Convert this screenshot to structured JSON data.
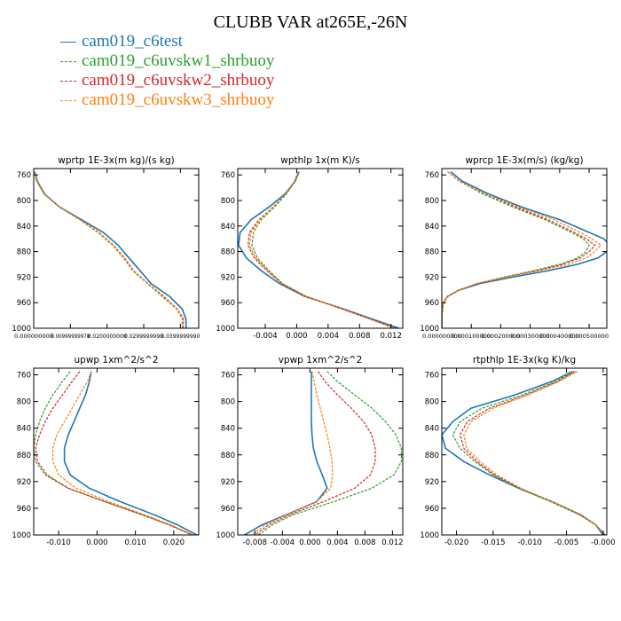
{
  "title": "CLUBB VAR at265E,-26N",
  "legend": [
    {
      "name": "cam019_c6test",
      "color": "#1f77b4",
      "dash": false
    },
    {
      "name": "cam019_c6uvskw1_shrbuoy",
      "color": "#2ca02c",
      "dash": true
    },
    {
      "name": "cam019_c6uvskw2_shrbuoy",
      "color": "#d62728",
      "dash": true
    },
    {
      "name": "cam019_c6uvskw3_shrbuoy",
      "color": "#ff7f0e",
      "dash": true
    }
  ],
  "chart_data": [
    {
      "type": "line",
      "title": "wprtp  1E-3x(m kg)/(s kg)",
      "xlim": [
        0.0,
        0.045
      ],
      "ylim": [
        1000,
        750
      ],
      "xticks": [
        0.0,
        0.01,
        0.02,
        0.03,
        0.04
      ],
      "xticklabels": [
        "0.000000000",
        "0.00999999978",
        "0.0200000000",
        "0.0299999990",
        "0.0399999990"
      ],
      "yticks": [
        760,
        800,
        840,
        880,
        920,
        960,
        1000
      ],
      "y": [
        755,
        770,
        790,
        810,
        830,
        850,
        870,
        890,
        910,
        930,
        950,
        970,
        985,
        1000
      ],
      "series": [
        {
          "name": "cam019_c6test",
          "values": [
            0.0003,
            0.001,
            0.003,
            0.007,
            0.013,
            0.019,
            0.023,
            0.026,
            0.029,
            0.032,
            0.037,
            0.0405,
            0.0415,
            0.0416
          ]
        },
        {
          "name": "cam019_c6uvskw1_shrbuoy",
          "values": [
            0.0002,
            0.0008,
            0.0028,
            0.007,
            0.0125,
            0.0175,
            0.0215,
            0.0245,
            0.027,
            0.031,
            0.035,
            0.039,
            0.0405,
            0.0405
          ]
        },
        {
          "name": "cam019_c6uvskw2_shrbuoy",
          "values": [
            0.0002,
            0.0009,
            0.0029,
            0.007,
            0.0127,
            0.0178,
            0.0218,
            0.0248,
            0.0273,
            0.0312,
            0.0355,
            0.0392,
            0.0408,
            0.0408
          ]
        },
        {
          "name": "cam019_c6uvskw3_shrbuoy",
          "values": [
            0.0002,
            0.0009,
            0.0029,
            0.007,
            0.0126,
            0.0177,
            0.0217,
            0.0247,
            0.0272,
            0.0311,
            0.0353,
            0.0391,
            0.0406,
            0.0406
          ]
        }
      ]
    },
    {
      "type": "line",
      "title": "wpthlp  1x(m K)/s",
      "xlim": [
        -0.0075,
        0.0135
      ],
      "ylim": [
        1000,
        750
      ],
      "xticks": [
        -0.004,
        0.0,
        0.004,
        0.008,
        0.012
      ],
      "xticklabels": [
        "-0.004",
        "0.000",
        "0.004",
        "0.008",
        "0.012"
      ],
      "yticks": [
        760,
        800,
        840,
        880,
        920,
        960,
        1000
      ],
      "y": [
        755,
        770,
        790,
        810,
        830,
        850,
        870,
        890,
        910,
        930,
        950,
        970,
        985,
        1000
      ],
      "series": [
        {
          "name": "cam019_c6test",
          "values": [
            0.0003,
            -0.0002,
            -0.0015,
            -0.0035,
            -0.0058,
            -0.0072,
            -0.0074,
            -0.0064,
            -0.0045,
            -0.0022,
            0.001,
            0.006,
            0.0095,
            0.013
          ]
        },
        {
          "name": "cam019_c6uvskw1_shrbuoy",
          "values": [
            0.0002,
            -0.0002,
            -0.0013,
            -0.0028,
            -0.0045,
            -0.0055,
            -0.0057,
            -0.005,
            -0.0035,
            -0.0018,
            0.0012,
            0.0058,
            0.0092,
            0.0125
          ]
        },
        {
          "name": "cam019_c6uvskw2_shrbuoy",
          "values": [
            0.0002,
            -0.0003,
            -0.0014,
            -0.003,
            -0.0048,
            -0.006,
            -0.0062,
            -0.0054,
            -0.0038,
            -0.0019,
            0.0012,
            0.0058,
            0.0092,
            0.0125
          ]
        },
        {
          "name": "cam019_c6uvskw3_shrbuoy",
          "values": [
            0.0002,
            -0.0003,
            -0.0014,
            -0.003,
            -0.0047,
            -0.0058,
            -0.006,
            -0.0052,
            -0.0037,
            -0.0019,
            0.0012,
            0.0058,
            0.0092,
            0.0125
          ]
        }
      ]
    },
    {
      "type": "line",
      "title": "wprcp  1E-3x(m/s) (kg/kg)",
      "xlim": [
        0.0,
        0.00056
      ],
      "ylim": [
        1000,
        750
      ],
      "xticks": [
        0.0,
        0.0001,
        0.0002,
        0.0003,
        0.0004,
        0.0005
      ],
      "xticklabels": [
        "0.000000000",
        "0.000100000",
        "0.000200000",
        "0.000300000",
        "0.000400000",
        "0.000500000"
      ],
      "yticks": [
        760,
        800,
        840,
        880,
        920,
        960,
        1000
      ],
      "y": [
        755,
        770,
        790,
        810,
        830,
        850,
        860,
        870,
        880,
        890,
        900,
        910,
        920,
        930,
        940,
        950,
        960,
        980,
        1000
      ],
      "series": [
        {
          "name": "cam019_c6test",
          "values": [
            3e-05,
            7e-05,
            0.00016,
            0.00027,
            0.0004,
            0.0005,
            0.00055,
            0.00057,
            0.00056,
            0.00053,
            0.00046,
            0.00036,
            0.00024,
            0.00013,
            6e-05,
            2e-05,
            5e-06,
            0.0,
            0.0
          ]
        },
        {
          "name": "cam019_c6uvskw1_shrbuoy",
          "values": [
            2e-05,
            6e-05,
            0.00014,
            0.00024,
            0.00035,
            0.00044,
            0.00048,
            0.0005,
            0.00049,
            0.00046,
            0.0004,
            0.00031,
            0.00021,
            0.00012,
            6e-05,
            2e-05,
            5e-06,
            0.0,
            0.0
          ]
        },
        {
          "name": "cam019_c6uvskw2_shrbuoy",
          "values": [
            2e-05,
            6e-05,
            0.00015,
            0.00025,
            0.00036,
            0.00045,
            0.00049,
            0.00052,
            0.0005,
            0.00047,
            0.00041,
            0.00032,
            0.00022,
            0.00012,
            6e-05,
            2e-05,
            5e-06,
            0.0,
            0.0
          ]
        },
        {
          "name": "cam019_c6uvskw3_shrbuoy",
          "values": [
            2e-05,
            6e-05,
            0.00015,
            0.00026,
            0.00038,
            0.00047,
            0.00051,
            0.00054,
            0.00052,
            0.00049,
            0.00043,
            0.00033,
            0.00022,
            0.00012,
            6e-05,
            2e-05,
            5e-06,
            0.0,
            0.0
          ]
        }
      ]
    },
    {
      "type": "line",
      "title": "upwp  1xm^2/s^2",
      "xlim": [
        -0.0165,
        0.0265
      ],
      "ylim": [
        1000,
        750
      ],
      "xticks": [
        -0.01,
        0.0,
        0.01,
        0.02
      ],
      "xticklabels": [
        "-0.010",
        "0.000",
        "0.010",
        "0.020"
      ],
      "yticks": [
        760,
        800,
        840,
        880,
        920,
        960,
        1000
      ],
      "y": [
        755,
        770,
        790,
        810,
        830,
        850,
        870,
        890,
        910,
        930,
        950,
        970,
        985,
        1000
      ],
      "series": [
        {
          "name": "cam019_c6test",
          "values": [
            -0.0015,
            -0.002,
            -0.003,
            -0.0045,
            -0.006,
            -0.0075,
            -0.0085,
            -0.0085,
            -0.007,
            -0.002,
            0.006,
            0.015,
            0.021,
            0.026
          ]
        },
        {
          "name": "cam019_c6uvskw1_shrbuoy",
          "values": [
            -0.007,
            -0.009,
            -0.0115,
            -0.0135,
            -0.015,
            -0.016,
            -0.0165,
            -0.016,
            -0.0135,
            -0.0075,
            0.002,
            0.012,
            0.019,
            0.025
          ]
        },
        {
          "name": "cam019_c6uvskw2_shrbuoy",
          "values": [
            -0.0045,
            -0.0065,
            -0.009,
            -0.0115,
            -0.0135,
            -0.015,
            -0.016,
            -0.0155,
            -0.013,
            -0.0075,
            0.002,
            0.0118,
            0.0188,
            0.0247
          ]
        },
        {
          "name": "cam019_c6uvskw3_shrbuoy",
          "values": [
            -0.0015,
            -0.0025,
            -0.0045,
            -0.0065,
            -0.0085,
            -0.0105,
            -0.0115,
            -0.0115,
            -0.01,
            -0.0055,
            0.003,
            0.0125,
            0.0193,
            0.025
          ]
        }
      ]
    },
    {
      "type": "line",
      "title": "vpwp  1xm^2/s^2",
      "xlim": [
        -0.0105,
        0.0135
      ],
      "ylim": [
        1000,
        750
      ],
      "xticks": [
        -0.008,
        -0.004,
        0.0,
        0.004,
        0.008,
        0.012
      ],
      "xticklabels": [
        "-0.008",
        "-0.004",
        "0.000",
        "0.004",
        "0.008",
        "0.012"
      ],
      "yticks": [
        760,
        800,
        840,
        880,
        920,
        960,
        1000
      ],
      "y": [
        755,
        770,
        790,
        810,
        830,
        850,
        870,
        890,
        910,
        930,
        950,
        970,
        985,
        1000
      ],
      "series": [
        {
          "name": "cam019_c6test",
          "values": [
            0.0002,
            0.0002,
            0.0002,
            0.0002,
            0.0002,
            0.0003,
            0.0005,
            0.001,
            0.0018,
            0.0025,
            0.001,
            -0.0035,
            -0.007,
            -0.0095
          ]
        },
        {
          "name": "cam019_c6uvskw1_shrbuoy",
          "values": [
            0.0025,
            0.004,
            0.0065,
            0.009,
            0.011,
            0.0125,
            0.0133,
            0.0133,
            0.0122,
            0.009,
            0.0035,
            -0.0025,
            -0.0055,
            -0.0075
          ]
        },
        {
          "name": "cam019_c6uvskw2_shrbuoy",
          "values": [
            0.0012,
            0.0022,
            0.004,
            0.006,
            0.0078,
            0.009,
            0.0095,
            0.0095,
            0.0088,
            0.0065,
            0.002,
            -0.003,
            -0.006,
            -0.008
          ]
        },
        {
          "name": "cam019_c6uvskw3_shrbuoy",
          "values": [
            0.0003,
            0.0006,
            0.001,
            0.0015,
            0.002,
            0.0025,
            0.0029,
            0.0032,
            0.0033,
            0.003,
            0.001,
            -0.0035,
            -0.0065,
            -0.0085
          ]
        }
      ]
    },
    {
      "type": "line",
      "title": "rtpthlp  1E-3x(kg K)/kg",
      "xlim": [
        -0.022,
        0.0005
      ],
      "ylim": [
        1000,
        750
      ],
      "xticks": [
        -0.02,
        -0.015,
        -0.01,
        -0.005,
        0.0
      ],
      "xticklabels": [
        "-0.020",
        "-0.015",
        "-0.010",
        "-0.005",
        "-0.000"
      ],
      "yticks": [
        760,
        800,
        840,
        880,
        920,
        960,
        1000
      ],
      "y": [
        755,
        770,
        790,
        810,
        830,
        850,
        870,
        890,
        910,
        930,
        950,
        970,
        985,
        1000
      ],
      "series": [
        {
          "name": "cam019_c6test",
          "values": [
            -0.0042,
            -0.007,
            -0.012,
            -0.018,
            -0.0205,
            -0.022,
            -0.0215,
            -0.019,
            -0.0155,
            -0.0115,
            -0.007,
            -0.003,
            -0.001,
            0.0
          ]
        },
        {
          "name": "cam019_c6uvskw1_shrbuoy",
          "values": [
            -0.004,
            -0.0065,
            -0.011,
            -0.0165,
            -0.0195,
            -0.0205,
            -0.0195,
            -0.0175,
            -0.015,
            -0.0115,
            -0.0072,
            -0.0032,
            -0.001,
            0.0003
          ]
        },
        {
          "name": "cam019_c6uvskw2_shrbuoy",
          "values": [
            -0.0038,
            -0.0062,
            -0.0105,
            -0.0155,
            -0.0185,
            -0.0195,
            -0.019,
            -0.0172,
            -0.0148,
            -0.0113,
            -0.007,
            -0.0031,
            -0.001,
            0.0003
          ]
        },
        {
          "name": "cam019_c6uvskw3_shrbuoy",
          "values": [
            -0.0035,
            -0.006,
            -0.0102,
            -0.015,
            -0.018,
            -0.019,
            -0.0186,
            -0.0168,
            -0.0145,
            -0.0112,
            -0.007,
            -0.003,
            -0.001,
            0.0003
          ]
        }
      ]
    }
  ]
}
